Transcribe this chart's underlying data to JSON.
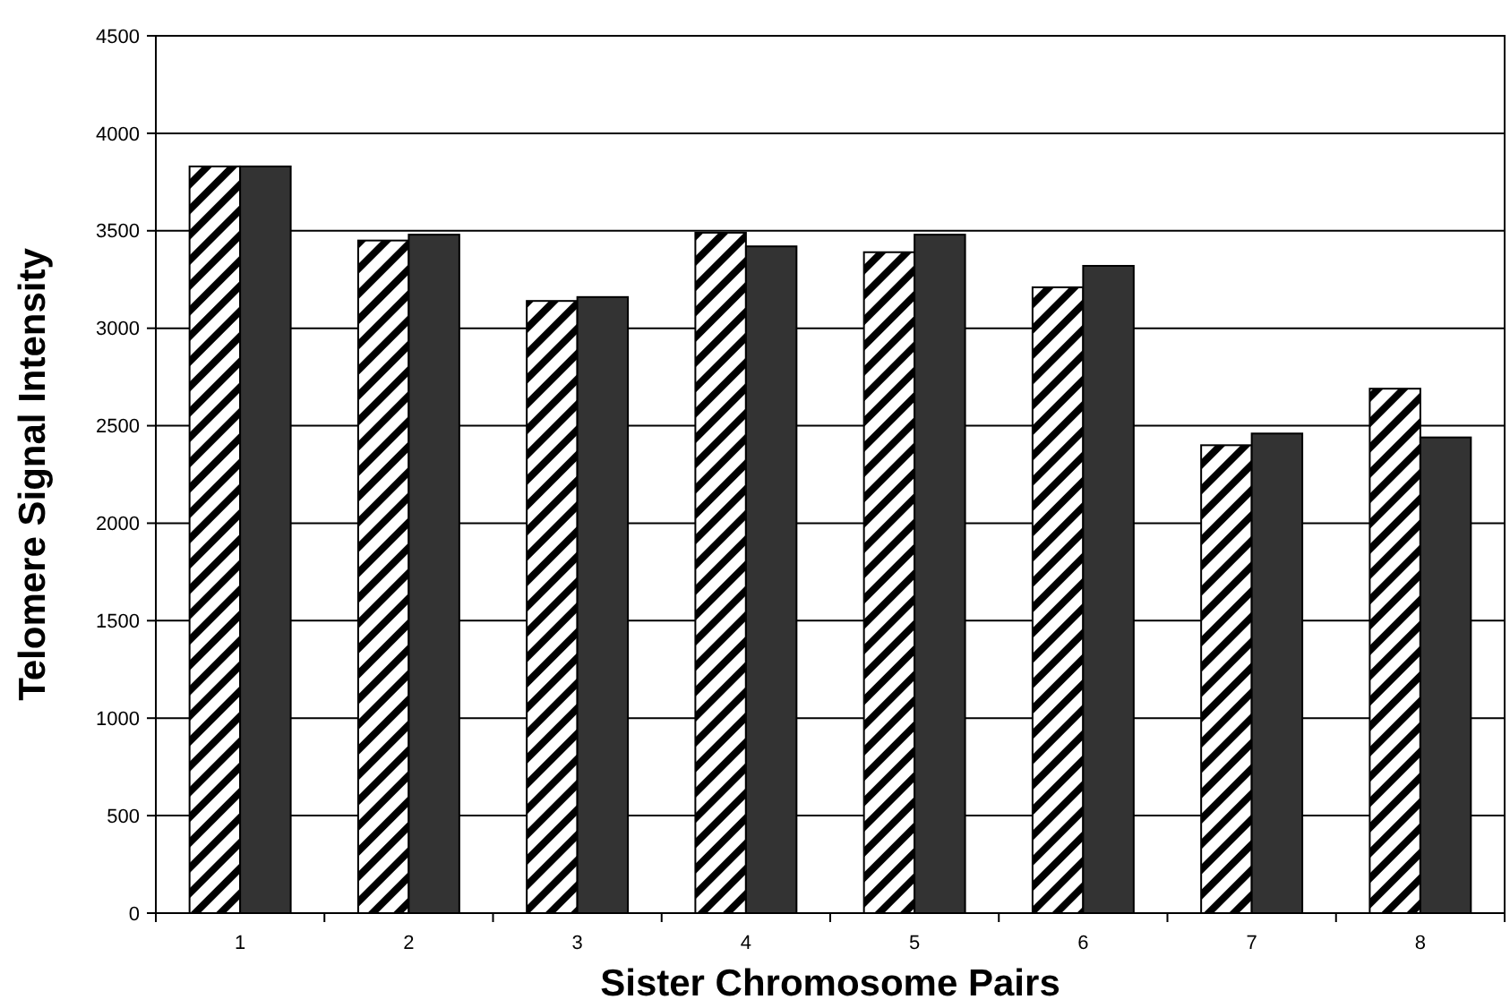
{
  "chart_data": {
    "type": "bar",
    "xlabel": "Sister Chromosome Pairs",
    "ylabel": "Telomere Signal Intensity",
    "categories": [
      "1",
      "2",
      "3",
      "4",
      "5",
      "6",
      "7",
      "8"
    ],
    "series": [
      {
        "color": "#000000",
        "values": [
          3830,
          3450,
          3140,
          3490,
          3390,
          3210,
          2400,
          2690
        ]
      },
      {
        "color": "#333333",
        "values": [
          3830,
          3480,
          3160,
          3420,
          3480,
          3320,
          2460,
          2440
        ]
      }
    ],
    "ylim": [
      0,
      4500
    ],
    "yticks": [
      0,
      500,
      1000,
      1500,
      2000,
      2500,
      3000,
      3500,
      4000,
      4500
    ],
    "grid": "y"
  }
}
